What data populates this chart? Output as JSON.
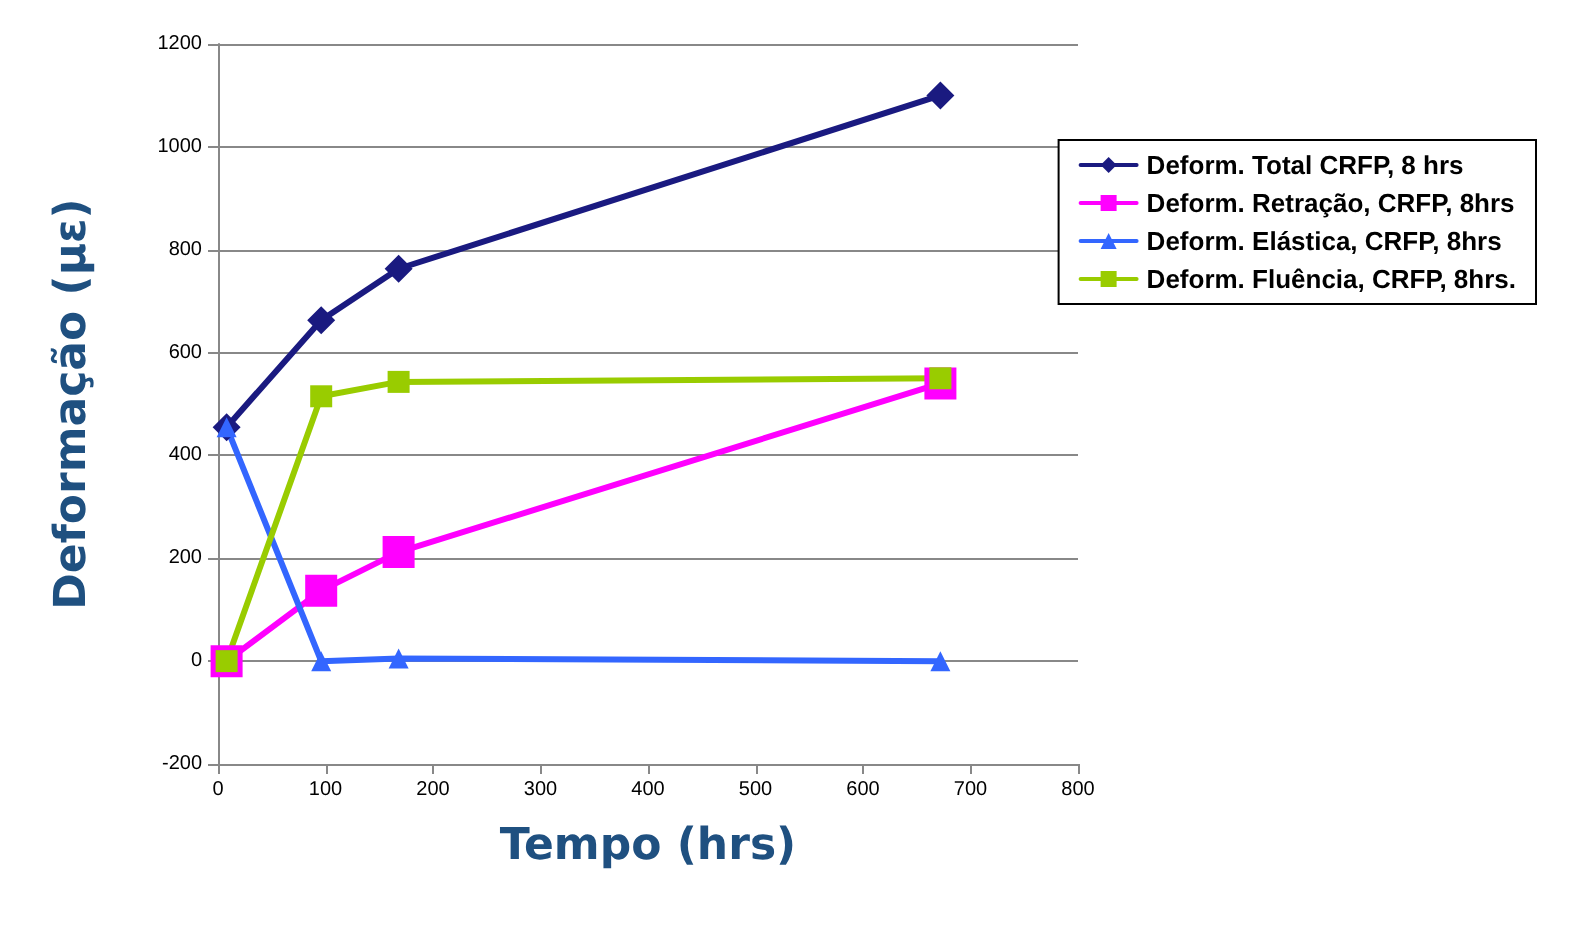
{
  "chart_data": {
    "type": "line",
    "xlabel": "Tempo (hrs)",
    "ylabel": "Deformação (με)",
    "x": [
      8,
      96,
      168,
      672
    ],
    "series": [
      {
        "name": "Deform. Total CRFP, 8 hrs",
        "color": "#1a1a80",
        "marker": "diamond",
        "values": [
          455,
          663,
          763,
          1100
        ]
      },
      {
        "name": "Deform. Retração, CRFP, 8hrs",
        "color": "#ff00ff",
        "marker": "square",
        "values": [
          0,
          137,
          212,
          540
        ]
      },
      {
        "name": "Deform. Elástica, CRFP, 8hrs",
        "color": "#3366ff",
        "marker": "triangle",
        "values": [
          455,
          0,
          5,
          0
        ]
      },
      {
        "name": "Deform. Fluência, CRFP, 8hrs.",
        "color": "#99cc00",
        "marker": "square",
        "values": [
          0,
          515,
          543,
          550
        ]
      }
    ],
    "xlim": [
      0,
      800
    ],
    "xticks": [
      0,
      100,
      200,
      300,
      400,
      500,
      600,
      700,
      800
    ],
    "ylim": [
      -200,
      1200
    ],
    "yticks": [
      -200,
      0,
      200,
      400,
      600,
      800,
      1000,
      1200
    ],
    "grid": "y",
    "legend": "top right",
    "line_style": "solid"
  }
}
